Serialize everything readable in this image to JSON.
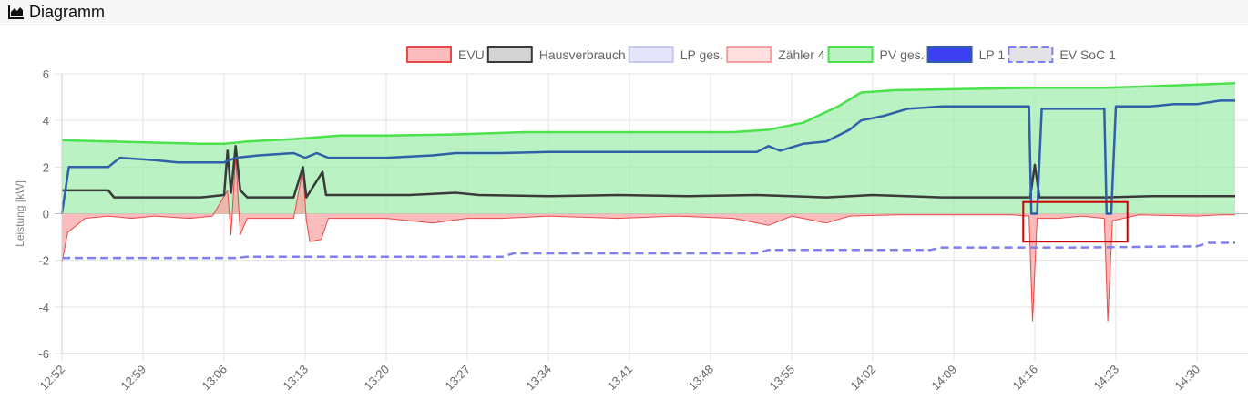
{
  "header": {
    "title": "Diagramm",
    "icon": "area-chart-icon"
  },
  "chart_data": {
    "type": "line",
    "ylabel": "Leistung [kW]",
    "ylim": [
      -6,
      6
    ],
    "yticks": [
      "6",
      "4",
      "2",
      "0",
      "-2",
      "-4",
      "-6"
    ],
    "xticks": [
      "12:52",
      "12:59",
      "13:06",
      "13:13",
      "13:20",
      "13:27",
      "13:34",
      "13:41",
      "13:48",
      "13:55",
      "14:02",
      "14:09",
      "14:16",
      "14:23",
      "14:30"
    ],
    "grid": true,
    "legend_position": "top",
    "highlight_box": {
      "x_from": "14:15",
      "x_to": "14:24",
      "y_from": 0.5,
      "y_to": -1.2,
      "color": "#cc0000"
    },
    "series": [
      {
        "name": "EVU",
        "fill": "#f8a5a5",
        "stroke": "#e84a4a",
        "points": [
          [
            "12:52",
            -2.1
          ],
          [
            "12:52.5",
            -0.8
          ],
          [
            "12:54",
            -0.2
          ],
          [
            "12:56",
            -0.1
          ],
          [
            "12:58",
            -0.2
          ],
          [
            "13:00",
            -0.1
          ],
          [
            "13:03",
            -0.2
          ],
          [
            "13:05",
            -0.1
          ],
          [
            "13:06.3",
            1.0
          ],
          [
            "13:06.6",
            -0.9
          ],
          [
            "13:07",
            2.5
          ],
          [
            "13:07.4",
            -0.9
          ],
          [
            "13:08",
            -0.2
          ],
          [
            "13:10",
            -0.2
          ],
          [
            "13:12",
            -0.2
          ],
          [
            "13:12.8",
            1.9
          ],
          [
            "13:13.1",
            -0.3
          ],
          [
            "13:13.4",
            -1.2
          ],
          [
            "13:14.4",
            -1.1
          ],
          [
            "13:15",
            -0.2
          ],
          [
            "13:20",
            -0.2
          ],
          [
            "13:24",
            -0.4
          ],
          [
            "13:27",
            -0.2
          ],
          [
            "13:30",
            -0.2
          ],
          [
            "13:34",
            -0.1
          ],
          [
            "13:40",
            -0.2
          ],
          [
            "13:45",
            -0.1
          ],
          [
            "13:50",
            -0.2
          ],
          [
            "13:53",
            -0.5
          ],
          [
            "13:55",
            -0.1
          ],
          [
            "13:58",
            -0.4
          ],
          [
            "14:00",
            -0.1
          ],
          [
            "14:04",
            -0.05
          ],
          [
            "14:10",
            -0.05
          ],
          [
            "14:14",
            -0.05
          ],
          [
            "14:15.5",
            -0.1
          ],
          [
            "14:15.8",
            -4.6
          ],
          [
            "14:16.2",
            -0.2
          ],
          [
            "14:18",
            -0.2
          ],
          [
            "14:20",
            -0.1
          ],
          [
            "14:22",
            -0.2
          ],
          [
            "14:22.3",
            -4.6
          ],
          [
            "14:22.7",
            -0.3
          ],
          [
            "14:25",
            -0.05
          ],
          [
            "14:30",
            -0.1
          ],
          [
            "14:32",
            -0.05
          ],
          [
            "14:33.3",
            -0.05
          ]
        ]
      },
      {
        "name": "Hausverbrauch",
        "fill": "#c6c6c6",
        "stroke": "#3a3a3a",
        "points": [
          [
            "12:52",
            1.0
          ],
          [
            "12:54",
            1.0
          ],
          [
            "12:56",
            1.0
          ],
          [
            "12:56.5",
            0.7
          ],
          [
            "13:00",
            0.7
          ],
          [
            "13:04",
            0.7
          ],
          [
            "13:06",
            0.8
          ],
          [
            "13:06.3",
            2.7
          ],
          [
            "13:06.6",
            0.9
          ],
          [
            "13:07",
            2.9
          ],
          [
            "13:07.4",
            1.0
          ],
          [
            "13:08",
            0.7
          ],
          [
            "13:12",
            0.7
          ],
          [
            "13:12.8",
            2.0
          ],
          [
            "13:13.1",
            0.7
          ],
          [
            "13:14.5",
            1.8
          ],
          [
            "13:14.8",
            0.8
          ],
          [
            "13:18",
            0.8
          ],
          [
            "13:22",
            0.8
          ],
          [
            "13:26",
            0.9
          ],
          [
            "13:28",
            0.8
          ],
          [
            "13:34",
            0.75
          ],
          [
            "13:40",
            0.8
          ],
          [
            "13:46",
            0.75
          ],
          [
            "13:52",
            0.8
          ],
          [
            "13:58",
            0.7
          ],
          [
            "14:02",
            0.8
          ],
          [
            "14:08",
            0.7
          ],
          [
            "14:14",
            0.7
          ],
          [
            "14:15.6",
            0.7
          ],
          [
            "14:16",
            2.1
          ],
          [
            "14:16.4",
            0.7
          ],
          [
            "14:22",
            0.7
          ],
          [
            "14:26",
            0.75
          ],
          [
            "14:33.3",
            0.75
          ]
        ]
      },
      {
        "name": "LP ges.",
        "fill": "#dcdcfa",
        "stroke": "#c8c8f0",
        "points": []
      },
      {
        "name": "Zähler 4",
        "fill": "#fdd5d5",
        "stroke": "#f3a0a0",
        "points": []
      },
      {
        "name": "PV ges.",
        "fill": "#a3edb0",
        "stroke": "#4be24b",
        "points": [
          [
            "12:52",
            3.15
          ],
          [
            "12:56",
            3.1
          ],
          [
            "13:00",
            3.05
          ],
          [
            "13:04",
            3.0
          ],
          [
            "13:06",
            3.0
          ],
          [
            "13:08",
            3.1
          ],
          [
            "13:12",
            3.2
          ],
          [
            "13:16",
            3.35
          ],
          [
            "13:20",
            3.35
          ],
          [
            "13:26",
            3.4
          ],
          [
            "13:32",
            3.5
          ],
          [
            "13:38",
            3.5
          ],
          [
            "13:44",
            3.5
          ],
          [
            "13:50",
            3.5
          ],
          [
            "13:53",
            3.6
          ],
          [
            "13:56",
            3.9
          ],
          [
            "13:59",
            4.6
          ],
          [
            "14:01",
            5.2
          ],
          [
            "14:04",
            5.3
          ],
          [
            "14:10",
            5.35
          ],
          [
            "14:16",
            5.4
          ],
          [
            "14:22",
            5.4
          ],
          [
            "14:28",
            5.5
          ],
          [
            "14:33.3",
            5.6
          ]
        ]
      },
      {
        "name": "LP 1",
        "fill": "#1c1cf0",
        "stroke": "#2f60a8",
        "points": [
          [
            "12:52",
            0.0
          ],
          [
            "12:52.6",
            2.0
          ],
          [
            "12:56",
            2.0
          ],
          [
            "12:57",
            2.4
          ],
          [
            "13:00",
            2.3
          ],
          [
            "13:02",
            2.2
          ],
          [
            "13:06",
            2.2
          ],
          [
            "13:07",
            2.4
          ],
          [
            "13:09",
            2.5
          ],
          [
            "13:12",
            2.6
          ],
          [
            "13:13",
            2.4
          ],
          [
            "13:14",
            2.6
          ],
          [
            "13:15",
            2.4
          ],
          [
            "13:20",
            2.4
          ],
          [
            "13:24",
            2.5
          ],
          [
            "13:26",
            2.6
          ],
          [
            "13:28",
            2.6
          ],
          [
            "13:30",
            2.6
          ],
          [
            "13:34",
            2.65
          ],
          [
            "13:40",
            2.65
          ],
          [
            "13:46",
            2.65
          ],
          [
            "13:52",
            2.65
          ],
          [
            "13:53",
            2.9
          ],
          [
            "13:54",
            2.7
          ],
          [
            "13:56",
            3.0
          ],
          [
            "13:58",
            3.1
          ],
          [
            "14:00",
            3.6
          ],
          [
            "14:01",
            4.0
          ],
          [
            "14:03",
            4.2
          ],
          [
            "14:05",
            4.5
          ],
          [
            "14:08",
            4.6
          ],
          [
            "14:12",
            4.6
          ],
          [
            "14:15.5",
            4.6
          ],
          [
            "14:15.7",
            0.0
          ],
          [
            "14:16.2",
            0.0
          ],
          [
            "14:16.6",
            4.5
          ],
          [
            "14:20",
            4.5
          ],
          [
            "14:22",
            4.5
          ],
          [
            "14:22.2",
            0.0
          ],
          [
            "14:22.6",
            0.0
          ],
          [
            "14:23",
            4.6
          ],
          [
            "14:26",
            4.6
          ],
          [
            "14:28",
            4.7
          ],
          [
            "14:30",
            4.7
          ],
          [
            "14:32",
            4.85
          ],
          [
            "14:33.3",
            4.85
          ]
        ]
      },
      {
        "name": "EV SoC 1",
        "fill": "#d9d9de",
        "stroke": "#7f7ff0",
        "dashed": true,
        "points": [
          [
            "12:52",
            -1.9
          ],
          [
            "13:00",
            -1.9
          ],
          [
            "13:07",
            -1.9
          ],
          [
            "13:08",
            -1.85
          ],
          [
            "13:20",
            -1.85
          ],
          [
            "13:30",
            -1.85
          ],
          [
            "13:31",
            -1.7
          ],
          [
            "13:40",
            -1.7
          ],
          [
            "13:52",
            -1.7
          ],
          [
            "13:53",
            -1.55
          ],
          [
            "14:00",
            -1.55
          ],
          [
            "14:07",
            -1.55
          ],
          [
            "14:08",
            -1.45
          ],
          [
            "14:20",
            -1.45
          ],
          [
            "14:30",
            -1.4
          ],
          [
            "14:31",
            -1.25
          ],
          [
            "14:33.3",
            -1.25
          ]
        ]
      }
    ]
  }
}
